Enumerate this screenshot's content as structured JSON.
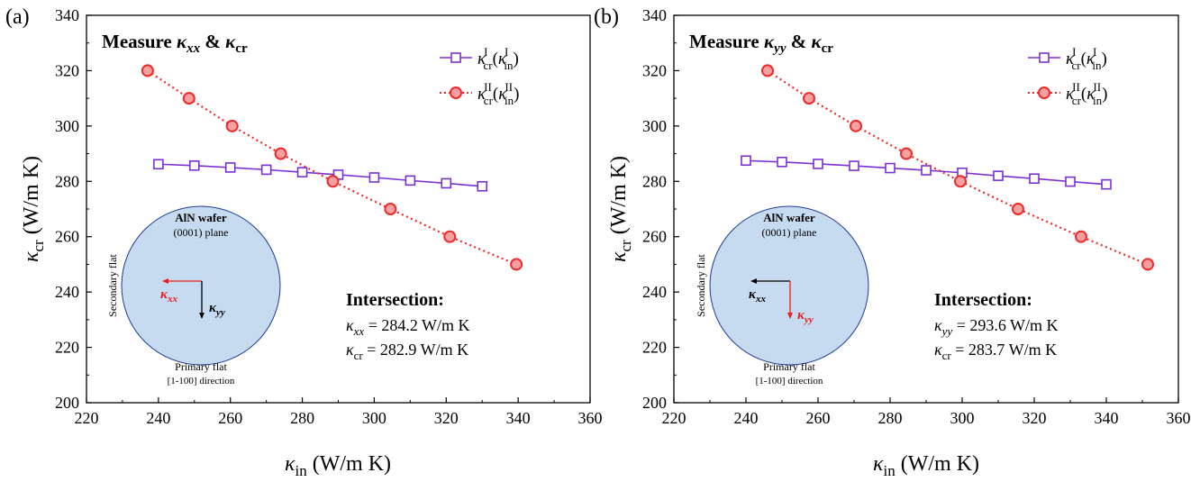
{
  "chart_data": [
    {
      "type": "line",
      "panel_label": "(a)",
      "title_prefix": "Measure ",
      "title_k1": "κ",
      "title_k1_sub": "xx",
      "title_amp": " & ",
      "title_k2": "κ",
      "title_k2_sub": "cr",
      "xlabel": "κ",
      "xlabel_sub": "in",
      "xlabel_unit": " (W/m K)",
      "ylabel": "κ",
      "ylabel_sub": "cr",
      "ylabel_unit": " (W/m K)",
      "xlim": [
        220,
        360
      ],
      "ylim": [
        200,
        340
      ],
      "xticks": [
        "220",
        "240",
        "260",
        "280",
        "300",
        "320",
        "340",
        "360"
      ],
      "yticks": [
        "200",
        "220",
        "240",
        "260",
        "280",
        "300",
        "320",
        "340"
      ],
      "series": [
        {
          "name": "κcrI(κinI)",
          "color": "#7b2fd6",
          "marker": "square",
          "linestyle": "solid",
          "x": [
            240,
            250,
            260,
            270,
            280,
            290,
            300,
            310,
            320,
            330
          ],
          "y": [
            286.2,
            285.7,
            285.0,
            284.2,
            283.3,
            282.4,
            281.4,
            280.3,
            279.3,
            278.2
          ]
        },
        {
          "name": "κcrII(κinII)",
          "color": "#ee2a2a",
          "marker": "circle",
          "linestyle": "dotted",
          "x": [
            237,
            248.5,
            260.5,
            274,
            288.5,
            304.5,
            321,
            339.5
          ],
          "y": [
            320,
            310,
            300,
            290,
            280,
            270,
            260,
            250
          ]
        }
      ],
      "legend": [
        {
          "k": "κ",
          "sub": "cr",
          "sup": "I",
          "paren_k": "κ",
          "paren_sub": "in",
          "paren_sup": "I"
        },
        {
          "k": "κ",
          "sub": "cr",
          "sup": "II",
          "paren_k": "κ",
          "paren_sub": "in",
          "paren_sup": "II"
        }
      ],
      "legend_position": "top-right",
      "inset": {
        "wafer_title": "AlN wafer",
        "wafer_plane": "(0001) plane",
        "secondary_flat": "Secondary flat",
        "primary_flat": "Primary flat",
        "primary_dir": "[1-100] direction",
        "horizontal_label": "κ",
        "horizontal_label_sub": "xx",
        "horizontal_color": "#ee1c1c",
        "vertical_label": "κ",
        "vertical_label_sub": "yy",
        "vertical_color": "#000000"
      },
      "intersection": {
        "title": "Intersection:",
        "line1_k": "κ",
        "line1_sub": "xx",
        "line1_val": " = 284.2 W/m K",
        "line2_k": "κ",
        "line2_sub": "cr",
        "line2_val": " = 282.9 W/m K"
      }
    },
    {
      "type": "line",
      "panel_label": "(b)",
      "title_prefix": "Measure ",
      "title_k1": "κ",
      "title_k1_sub": "yy",
      "title_amp": " & ",
      "title_k2": "κ",
      "title_k2_sub": "cr",
      "xlabel": "κ",
      "xlabel_sub": "in",
      "xlabel_unit": " (W/m K)",
      "ylabel": "κ",
      "ylabel_sub": "cr",
      "ylabel_unit": " (W/m K)",
      "xlim": [
        220,
        360
      ],
      "ylim": [
        200,
        340
      ],
      "xticks": [
        "220",
        "240",
        "260",
        "280",
        "300",
        "320",
        "340",
        "360"
      ],
      "yticks": [
        "200",
        "220",
        "240",
        "260",
        "280",
        "300",
        "320",
        "340"
      ],
      "series": [
        {
          "name": "κcrI(κinI)",
          "color": "#7b2fd6",
          "marker": "square",
          "linestyle": "solid",
          "x": [
            240,
            250,
            260,
            270,
            280,
            290,
            300,
            310,
            320,
            330,
            340
          ],
          "y": [
            287.5,
            287.0,
            286.3,
            285.6,
            284.8,
            284.0,
            283.1,
            282.0,
            281.0,
            279.9,
            278.9
          ]
        },
        {
          "name": "κcrII(κinII)",
          "color": "#ee2a2a",
          "marker": "circle",
          "linestyle": "dotted",
          "x": [
            246,
            257.5,
            270.5,
            284.5,
            299.5,
            315.5,
            333,
            351.5
          ],
          "y": [
            320,
            310,
            300,
            290,
            280,
            270,
            260,
            250
          ]
        }
      ],
      "legend": [
        {
          "k": "κ",
          "sub": "cr",
          "sup": "I",
          "paren_k": "κ",
          "paren_sub": "in",
          "paren_sup": "I"
        },
        {
          "k": "κ",
          "sub": "cr",
          "sup": "II",
          "paren_k": "κ",
          "paren_sub": "in",
          "paren_sup": "II"
        }
      ],
      "legend_position": "top-right",
      "inset": {
        "wafer_title": "AlN wafer",
        "wafer_plane": "(0001) plane",
        "secondary_flat": "Secondary flat",
        "primary_flat": "Primary flat",
        "primary_dir": "[1-100] direction",
        "horizontal_label": "κ",
        "horizontal_label_sub": "xx",
        "horizontal_color": "#000000",
        "vertical_label": "κ",
        "vertical_label_sub": "yy",
        "vertical_color": "#ee1c1c"
      },
      "intersection": {
        "title": "Intersection:",
        "line1_k": "κ",
        "line1_sub": "yy",
        "line1_val": " = 293.6 W/m K",
        "line2_k": "κ",
        "line2_sub": "cr",
        "line2_val": " = 283.7 W/m K"
      }
    }
  ]
}
